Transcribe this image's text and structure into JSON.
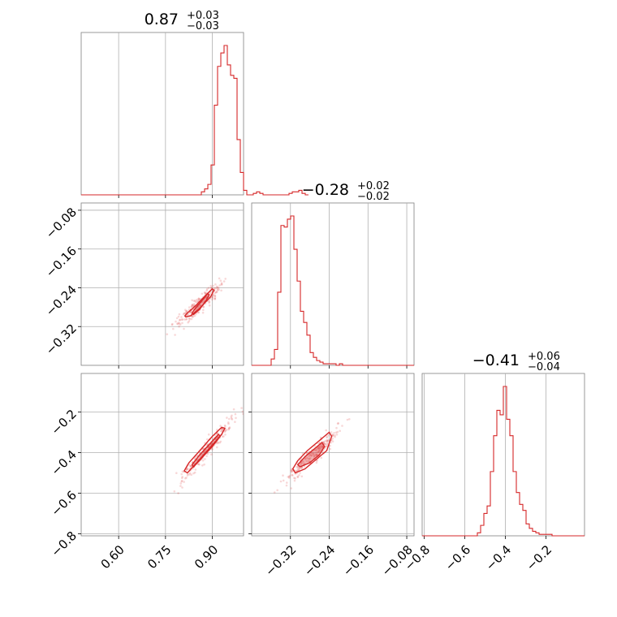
{
  "chart_data": {
    "type": "corner",
    "color": "#d62728",
    "grid": true,
    "parameters": [
      {
        "range": [
          0.48,
          1.0
        ],
        "ticks": [
          "0.60",
          "0.75",
          "0.90"
        ],
        "tick_values": [
          0.6,
          0.75,
          0.9
        ],
        "title": {
          "median": "0.87",
          "plus": "+0.03",
          "minus": "−0.03"
        }
      },
      {
        "range": [
          -0.4,
          -0.065
        ],
        "ticks": [
          "−0.32",
          "−0.24",
          "−0.16",
          "−0.08"
        ],
        "tick_values": [
          -0.32,
          -0.24,
          -0.16,
          -0.08
        ],
        "title": {
          "median": "−0.28",
          "plus": "+0.02",
          "minus": "−0.02"
        }
      },
      {
        "range": [
          -0.81,
          -0.01
        ],
        "ticks": [
          "−0.8",
          "−0.6",
          "−0.4",
          "−0.2"
        ],
        "tick_values": [
          -0.8,
          -0.6,
          -0.4,
          -0.2
        ],
        "title": {
          "median": "−0.41",
          "plus": "+0.06",
          "minus": "−0.04"
        }
      }
    ],
    "histograms": [
      {
        "param": 0,
        "bin_start": 0.48,
        "bin_width": 0.0104,
        "counts": [
          0,
          0,
          0,
          0,
          0,
          0,
          0,
          0,
          0,
          0,
          0,
          0,
          0,
          0,
          0,
          0,
          0,
          0,
          0,
          0,
          0,
          0,
          0,
          0,
          0,
          0,
          0,
          0,
          0,
          0,
          0,
          0,
          0,
          0,
          0,
          0,
          0,
          0.02,
          0.04,
          0.07,
          0.2,
          0.6,
          0.86,
          0.95,
          1.0,
          0.87,
          0.8,
          0.78,
          0.37,
          0.15,
          0.03,
          0.0,
          0.0,
          0.01,
          0.02,
          0.01,
          0.0,
          0.0,
          0.0,
          0.0,
          0.0,
          0.0,
          0.0,
          0.0,
          0.01,
          0.02,
          0.02,
          0.03,
          0.01,
          0.0
        ]
      },
      {
        "param": 1,
        "bin_start": -0.4,
        "bin_width": 0.0067,
        "counts": [
          0,
          0,
          0,
          0,
          0,
          0,
          0.04,
          0.1,
          0.46,
          0.88,
          0.87,
          0.92,
          0.94,
          0.73,
          0.53,
          0.34,
          0.27,
          0.19,
          0.08,
          0.05,
          0.03,
          0.02,
          0.01,
          0.01,
          0.01,
          0.01,
          0.0,
          0.01,
          0.0,
          0.0,
          0.0,
          0.0,
          0.0,
          0.0,
          0.0,
          0.0,
          0.0,
          0.0,
          0.0,
          0.0,
          0.0,
          0.0,
          0.0,
          0.0,
          0.0,
          0.0,
          0.0,
          0.0,
          0.0,
          0.0
        ]
      },
      {
        "param": 2,
        "bin_start": -0.81,
        "bin_width": 0.016,
        "counts": [
          0,
          0,
          0,
          0,
          0,
          0,
          0,
          0,
          0,
          0,
          0,
          0,
          0,
          0,
          0,
          0,
          0,
          0.02,
          0.07,
          0.15,
          0.2,
          0.43,
          0.67,
          0.84,
          0.81,
          1.0,
          0.78,
          0.67,
          0.43,
          0.29,
          0.21,
          0.17,
          0.08,
          0.05,
          0.03,
          0.02,
          0.01,
          0.01,
          0.01,
          0.01,
          0.0,
          0.0,
          0.0,
          0.0,
          0.0,
          0.0,
          0.0,
          0.0,
          0.0,
          0.0
        ]
      }
    ],
    "scatter_2d": [
      {
        "x_param": 0,
        "y_param": 1,
        "center": [
          0.86,
          -0.28
        ],
        "contours": [
          [
            [
              0.84,
              -0.295
            ],
            [
              0.86,
              -0.284
            ],
            [
              0.88,
              -0.266
            ],
            [
              0.89,
              -0.255
            ],
            [
              0.885,
              -0.252
            ],
            [
              0.865,
              -0.268
            ],
            [
              0.845,
              -0.283
            ],
            [
              0.835,
              -0.292
            ]
          ],
          [
            [
              0.815,
              -0.3
            ],
            [
              0.83,
              -0.298
            ],
            [
              0.86,
              -0.282
            ],
            [
              0.895,
              -0.258
            ],
            [
              0.905,
              -0.245
            ],
            [
              0.9,
              -0.242
            ],
            [
              0.875,
              -0.258
            ],
            [
              0.845,
              -0.278
            ],
            [
              0.82,
              -0.292
            ],
            [
              0.812,
              -0.298
            ]
          ]
        ]
      },
      {
        "x_param": 0,
        "y_param": 2,
        "center": [
          0.87,
          -0.41
        ],
        "contours": [
          [
            [
              0.84,
              -0.47
            ],
            [
              0.87,
              -0.42
            ],
            [
              0.9,
              -0.37
            ],
            [
              0.925,
              -0.32
            ],
            [
              0.92,
              -0.31
            ],
            [
              0.89,
              -0.36
            ],
            [
              0.86,
              -0.41
            ],
            [
              0.835,
              -0.46
            ]
          ],
          [
            [
              0.82,
              -0.5
            ],
            [
              0.85,
              -0.45
            ],
            [
              0.89,
              -0.38
            ],
            [
              0.93,
              -0.31
            ],
            [
              0.94,
              -0.28
            ],
            [
              0.93,
              -0.275
            ],
            [
              0.9,
              -0.32
            ],
            [
              0.86,
              -0.39
            ],
            [
              0.825,
              -0.45
            ],
            [
              0.81,
              -0.49
            ]
          ]
        ]
      },
      {
        "x_param": 1,
        "y_param": 2,
        "center": [
          -0.28,
          -0.43
        ],
        "contours": [
          [
            [
              -0.3,
              -0.47
            ],
            [
              -0.28,
              -0.45
            ],
            [
              -0.26,
              -0.41
            ],
            [
              -0.25,
              -0.37
            ],
            [
              -0.255,
              -0.35
            ],
            [
              -0.27,
              -0.38
            ],
            [
              -0.29,
              -0.42
            ],
            [
              -0.305,
              -0.46
            ]
          ],
          [
            [
              -0.31,
              -0.5
            ],
            [
              -0.29,
              -0.48
            ],
            [
              -0.27,
              -0.44
            ],
            [
              -0.245,
              -0.39
            ],
            [
              -0.235,
              -0.32
            ],
            [
              -0.24,
              -0.3
            ],
            [
              -0.26,
              -0.34
            ],
            [
              -0.285,
              -0.39
            ],
            [
              -0.305,
              -0.44
            ],
            [
              -0.315,
              -0.48
            ]
          ]
        ]
      }
    ]
  }
}
